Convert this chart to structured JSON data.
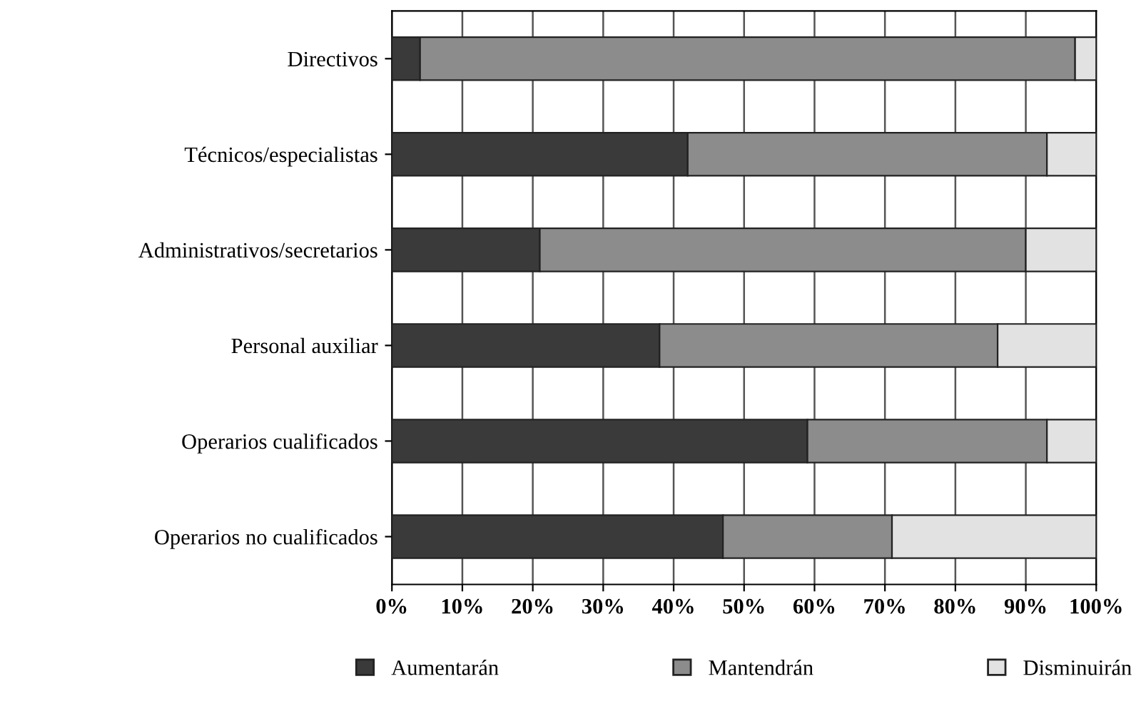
{
  "chart_data": {
    "type": "bar",
    "orientation": "horizontal",
    "stacked": true,
    "categories": [
      "Directivos",
      "Técnicos/especialistas",
      "Administrativos/secretarios",
      "Personal auxiliar",
      "Operarios cualificados",
      "Operarios no cualificados"
    ],
    "series": [
      {
        "name": "Aumentarán",
        "color": "#3a3a3a",
        "values": [
          4,
          42,
          21,
          38,
          59,
          47
        ]
      },
      {
        "name": "Mantendrán",
        "color": "#8c8c8c",
        "values": [
          93,
          51,
          69,
          48,
          34,
          24
        ]
      },
      {
        "name": "Disminuirán",
        "color": "#e2e2e2",
        "values": [
          3,
          7,
          10,
          14,
          7,
          29
        ]
      }
    ],
    "xlim": [
      0,
      100
    ],
    "xticks": [
      {
        "value": 0,
        "label": "0%"
      },
      {
        "value": 10,
        "label": "10%"
      },
      {
        "value": 20,
        "label": "20%"
      },
      {
        "value": 30,
        "label": "30%"
      },
      {
        "value": 40,
        "label": "40%"
      },
      {
        "value": 50,
        "label": "50%"
      },
      {
        "value": 60,
        "label": "60%"
      },
      {
        "value": 70,
        "label": "70%"
      },
      {
        "value": 80,
        "label": "80%"
      },
      {
        "value": 90,
        "label": "90%"
      },
      {
        "value": 100,
        "label": "100%"
      }
    ],
    "grid": "x",
    "legend": "bottom"
  }
}
